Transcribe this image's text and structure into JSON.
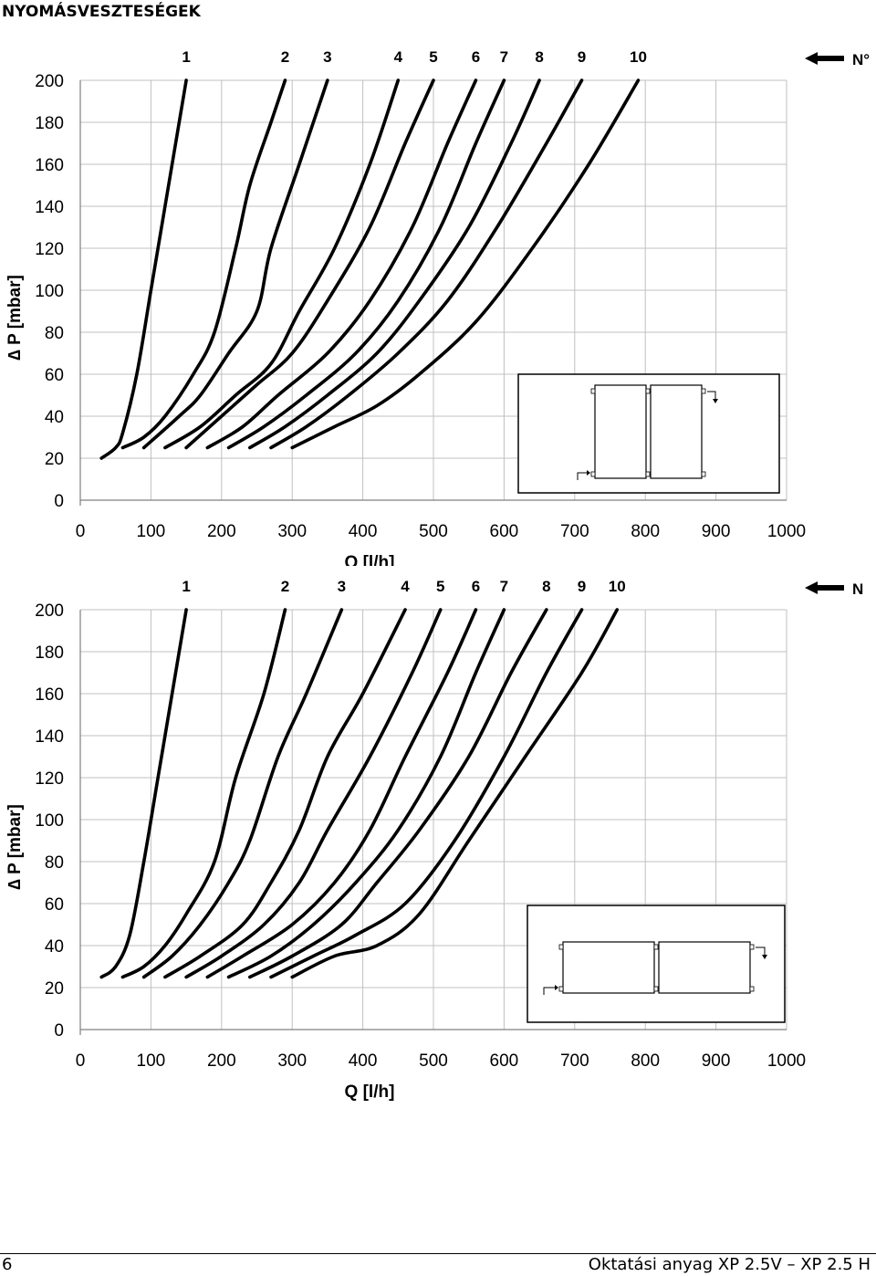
{
  "page": {
    "title": "NYOMÁSVESZTESÉGEK",
    "page_number": "6",
    "footer_text": "Oktatási anyag XP 2.5V – XP 2.5 H"
  },
  "colors": {
    "grid": "#c0c0c0",
    "curve": "#000000",
    "frame": "#808080"
  },
  "icons": {
    "arrow": "left-arrow-icon",
    "inset": "radiator-connection-diagram"
  },
  "chart_data": [
    {
      "type": "line",
      "legend_label": "N°",
      "xlabel": "Q  [l/h]",
      "ylabel": "∆ P  [mbar]",
      "xlim": [
        0,
        1000
      ],
      "ylim": [
        0,
        200
      ],
      "xticks": [
        "0",
        "100",
        "200",
        "300",
        "400",
        "500",
        "600",
        "700",
        "800",
        "900",
        "1000"
      ],
      "yticks": [
        "0",
        "20",
        "40",
        "60",
        "80",
        "100",
        "120",
        "140",
        "160",
        "180",
        "200"
      ],
      "grid": true,
      "inset": "radiator-pair-side-by-side",
      "series": [
        {
          "name": "1",
          "points": [
            [
              30,
              20
            ],
            [
              50,
              25
            ],
            [
              60,
              32
            ],
            [
              80,
              60
            ],
            [
              100,
              100
            ],
            [
              120,
              140
            ],
            [
              140,
              180
            ],
            [
              150,
              200
            ]
          ]
        },
        {
          "name": "2",
          "points": [
            [
              60,
              25
            ],
            [
              90,
              30
            ],
            [
              120,
              40
            ],
            [
              160,
              60
            ],
            [
              190,
              80
            ],
            [
              220,
              120
            ],
            [
              240,
              150
            ],
            [
              270,
              180
            ],
            [
              290,
              200
            ]
          ]
        },
        {
          "name": "3",
          "points": [
            [
              90,
              25
            ],
            [
              140,
              40
            ],
            [
              170,
              50
            ],
            [
              210,
              70
            ],
            [
              250,
              90
            ],
            [
              270,
              120
            ],
            [
              310,
              160
            ],
            [
              350,
              200
            ]
          ]
        },
        {
          "name": "4",
          "points": [
            [
              120,
              25
            ],
            [
              170,
              35
            ],
            [
              220,
              50
            ],
            [
              270,
              65
            ],
            [
              310,
              90
            ],
            [
              360,
              120
            ],
            [
              410,
              160
            ],
            [
              450,
              200
            ]
          ]
        },
        {
          "name": "5",
          "points": [
            [
              150,
              25
            ],
            [
              200,
              40
            ],
            [
              250,
              55
            ],
            [
              300,
              70
            ],
            [
              350,
              95
            ],
            [
              410,
              130
            ],
            [
              460,
              170
            ],
            [
              500,
              200
            ]
          ]
        },
        {
          "name": "6",
          "points": [
            [
              180,
              25
            ],
            [
              230,
              35
            ],
            [
              280,
              50
            ],
            [
              350,
              70
            ],
            [
              410,
              95
            ],
            [
              470,
              130
            ],
            [
              520,
              170
            ],
            [
              560,
              200
            ]
          ]
        },
        {
          "name": "7",
          "points": [
            [
              210,
              25
            ],
            [
              260,
              35
            ],
            [
              320,
              50
            ],
            [
              390,
              70
            ],
            [
              450,
              95
            ],
            [
              510,
              130
            ],
            [
              560,
              170
            ],
            [
              600,
              200
            ]
          ]
        },
        {
          "name": "8",
          "points": [
            [
              240,
              25
            ],
            [
              290,
              35
            ],
            [
              350,
              50
            ],
            [
              420,
              70
            ],
            [
              480,
              95
            ],
            [
              550,
              130
            ],
            [
              610,
              170
            ],
            [
              650,
              200
            ]
          ]
        },
        {
          "name": "9",
          "points": [
            [
              270,
              25
            ],
            [
              320,
              35
            ],
            [
              380,
              50
            ],
            [
              450,
              70
            ],
            [
              520,
              95
            ],
            [
              590,
              130
            ],
            [
              660,
              170
            ],
            [
              710,
              200
            ]
          ]
        },
        {
          "name": "10",
          "points": [
            [
              300,
              25
            ],
            [
              360,
              35
            ],
            [
              420,
              45
            ],
            [
              480,
              60
            ],
            [
              560,
              85
            ],
            [
              640,
              120
            ],
            [
              720,
              160
            ],
            [
              790,
              200
            ]
          ]
        }
      ]
    },
    {
      "type": "line",
      "legend_label": "N",
      "xlabel": "Q  [l/h]",
      "ylabel": "∆ P  [mbar]",
      "xlim": [
        0,
        1000
      ],
      "ylim": [
        0,
        200
      ],
      "xticks": [
        "0",
        "100",
        "200",
        "300",
        "400",
        "500",
        "600",
        "700",
        "800",
        "900",
        "1000"
      ],
      "yticks": [
        "0",
        "20",
        "40",
        "60",
        "80",
        "100",
        "120",
        "140",
        "160",
        "180",
        "200"
      ],
      "grid": true,
      "inset": "radiator-pair-in-line",
      "series": [
        {
          "name": "1",
          "points": [
            [
              30,
              25
            ],
            [
              50,
              30
            ],
            [
              70,
              45
            ],
            [
              90,
              80
            ],
            [
              110,
              120
            ],
            [
              130,
              160
            ],
            [
              150,
              200
            ]
          ]
        },
        {
          "name": "2",
          "points": [
            [
              60,
              25
            ],
            [
              90,
              30
            ],
            [
              120,
              40
            ],
            [
              150,
              55
            ],
            [
              190,
              80
            ],
            [
              220,
              120
            ],
            [
              260,
              160
            ],
            [
              290,
              200
            ]
          ]
        },
        {
          "name": "3",
          "points": [
            [
              90,
              25
            ],
            [
              130,
              35
            ],
            [
              170,
              50
            ],
            [
              210,
              70
            ],
            [
              240,
              90
            ],
            [
              280,
              130
            ],
            [
              320,
              160
            ],
            [
              370,
              200
            ]
          ]
        },
        {
          "name": "4",
          "points": [
            [
              120,
              25
            ],
            [
              170,
              35
            ],
            [
              230,
              50
            ],
            [
              270,
              70
            ],
            [
              310,
              95
            ],
            [
              350,
              130
            ],
            [
              400,
              160
            ],
            [
              460,
              200
            ]
          ]
        },
        {
          "name": "5",
          "points": [
            [
              150,
              25
            ],
            [
              200,
              35
            ],
            [
              260,
              50
            ],
            [
              310,
              70
            ],
            [
              350,
              95
            ],
            [
              410,
              130
            ],
            [
              470,
              170
            ],
            [
              510,
              200
            ]
          ]
        },
        {
          "name": "6",
          "points": [
            [
              180,
              25
            ],
            [
              230,
              35
            ],
            [
              300,
              50
            ],
            [
              360,
              70
            ],
            [
              410,
              95
            ],
            [
              460,
              130
            ],
            [
              520,
              170
            ],
            [
              560,
              200
            ]
          ]
        },
        {
          "name": "7",
          "points": [
            [
              210,
              25
            ],
            [
              270,
              35
            ],
            [
              330,
              50
            ],
            [
              390,
              70
            ],
            [
              450,
              95
            ],
            [
              510,
              130
            ],
            [
              560,
              170
            ],
            [
              600,
              200
            ]
          ]
        },
        {
          "name": "8",
          "points": [
            [
              240,
              25
            ],
            [
              300,
              35
            ],
            [
              370,
              50
            ],
            [
              420,
              70
            ],
            [
              480,
              95
            ],
            [
              550,
              130
            ],
            [
              610,
              170
            ],
            [
              660,
              200
            ]
          ]
        },
        {
          "name": "9",
          "points": [
            [
              270,
              25
            ],
            [
              330,
              35
            ],
            [
              390,
              45
            ],
            [
              460,
              60
            ],
            [
              530,
              90
            ],
            [
              600,
              130
            ],
            [
              660,
              170
            ],
            [
              710,
              200
            ]
          ]
        },
        {
          "name": "10",
          "points": [
            [
              300,
              25
            ],
            [
              360,
              35
            ],
            [
              420,
              40
            ],
            [
              480,
              55
            ],
            [
              550,
              90
            ],
            [
              630,
              130
            ],
            [
              710,
              170
            ],
            [
              760,
              200
            ]
          ]
        }
      ]
    }
  ]
}
